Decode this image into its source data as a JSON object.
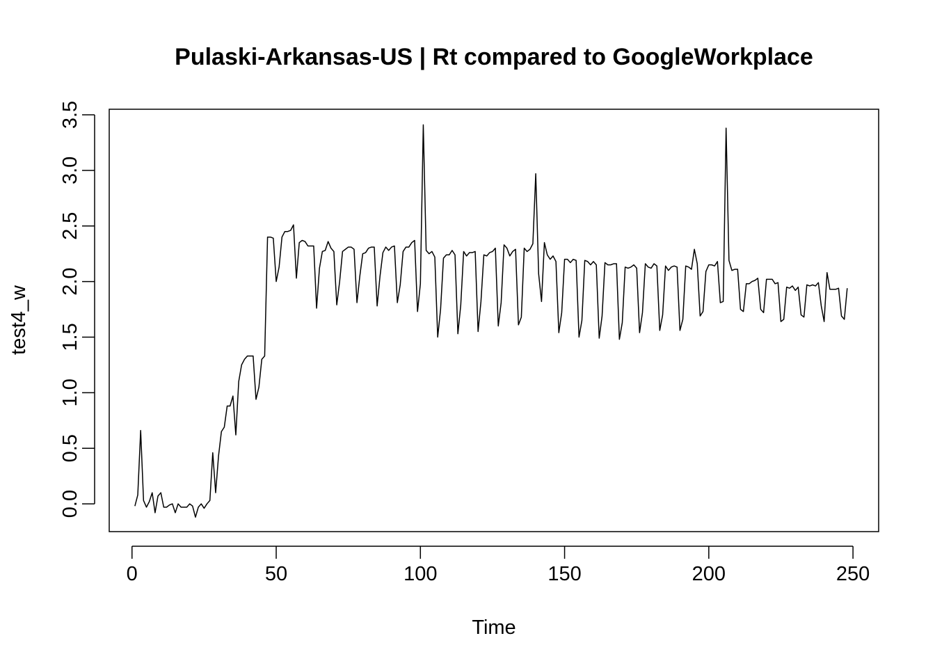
{
  "chart_data": {
    "type": "line",
    "title": "Pulaski-Arkansas-US | Rt compared to GoogleWorkplace",
    "xlabel": "Time",
    "ylabel": "test4_w",
    "xlim": [
      -7.9,
      258.9
    ],
    "ylim": [
      -0.25,
      3.55
    ],
    "xticks": [
      0,
      50,
      100,
      150,
      200,
      250
    ],
    "yticks": [
      0.0,
      0.5,
      1.0,
      1.5,
      2.0,
      2.5,
      3.0,
      3.5
    ],
    "xtick_labels": [
      "0",
      "50",
      "100",
      "150",
      "200",
      "250"
    ],
    "ytick_labels": [
      "0.0",
      "0.5",
      "1.0",
      "1.5",
      "2.0",
      "2.5",
      "3.0",
      "3.5"
    ],
    "grid": false,
    "legend": "none",
    "series": [
      {
        "x_start": 1,
        "values": [
          -0.02,
          0.08,
          0.66,
          0.03,
          -0.03,
          0.02,
          0.1,
          -0.08,
          0.07,
          0.1,
          -0.03,
          -0.03,
          -0.01,
          0.0,
          -0.08,
          0.0,
          -0.03,
          -0.03,
          -0.03,
          0.0,
          -0.02,
          -0.12,
          -0.03,
          0.0,
          -0.04,
          0.0,
          0.03,
          0.46,
          0.1,
          0.43,
          0.65,
          0.69,
          0.88,
          0.88,
          0.97,
          0.62,
          1.1,
          1.25,
          1.3,
          1.33,
          1.33,
          1.33,
          0.94,
          1.05,
          1.3,
          1.33,
          2.4,
          2.4,
          2.39,
          2.0,
          2.13,
          2.4,
          2.45,
          2.45,
          2.46,
          2.51,
          2.03,
          2.35,
          2.37,
          2.36,
          2.32,
          2.32,
          2.32,
          1.76,
          2.12,
          2.27,
          2.28,
          2.36,
          2.3,
          2.27,
          1.79,
          2.0,
          2.27,
          2.29,
          2.31,
          2.31,
          2.29,
          1.81,
          2.05,
          2.25,
          2.26,
          2.3,
          2.31,
          2.31,
          1.78,
          2.05,
          2.26,
          2.31,
          2.28,
          2.31,
          2.32,
          1.81,
          1.97,
          2.27,
          2.31,
          2.31,
          2.35,
          2.37,
          1.73,
          1.98,
          3.41,
          2.28,
          2.25,
          2.27,
          2.22,
          1.5,
          1.75,
          2.21,
          2.24,
          2.24,
          2.28,
          2.24,
          1.53,
          1.79,
          2.27,
          2.23,
          2.26,
          2.26,
          2.27,
          1.55,
          1.82,
          2.24,
          2.23,
          2.26,
          2.27,
          2.3,
          1.6,
          1.81,
          2.33,
          2.3,
          2.23,
          2.27,
          2.29,
          1.61,
          1.68,
          2.3,
          2.27,
          2.29,
          2.34,
          2.97,
          2.07,
          1.82,
          2.35,
          2.24,
          2.2,
          2.23,
          2.18,
          1.54,
          1.72,
          2.2,
          2.2,
          2.17,
          2.2,
          2.19,
          1.5,
          1.65,
          2.19,
          2.18,
          2.15,
          2.18,
          2.15,
          1.49,
          1.69,
          2.17,
          2.15,
          2.15,
          2.16,
          2.16,
          1.48,
          1.63,
          2.13,
          2.12,
          2.13,
          2.15,
          2.12,
          1.54,
          1.72,
          2.16,
          2.13,
          2.12,
          2.16,
          2.14,
          1.56,
          1.7,
          2.14,
          2.1,
          2.13,
          2.14,
          2.13,
          1.56,
          1.66,
          2.14,
          2.13,
          2.11,
          2.29,
          2.16,
          1.69,
          1.73,
          2.09,
          2.15,
          2.15,
          2.14,
          2.18,
          1.81,
          1.82,
          3.38,
          2.19,
          2.1,
          2.11,
          2.11,
          1.75,
          1.73,
          1.98,
          1.98,
          2.0,
          2.01,
          2.03,
          1.75,
          1.72,
          2.02,
          2.02,
          2.02,
          1.98,
          1.99,
          1.64,
          1.66,
          1.95,
          1.94,
          1.96,
          1.92,
          1.95,
          1.7,
          1.68,
          1.97,
          1.96,
          1.97,
          1.96,
          1.99,
          1.78,
          1.64,
          2.08,
          1.93,
          1.93,
          1.93,
          1.94,
          1.69,
          1.66,
          1.94
        ]
      }
    ]
  }
}
